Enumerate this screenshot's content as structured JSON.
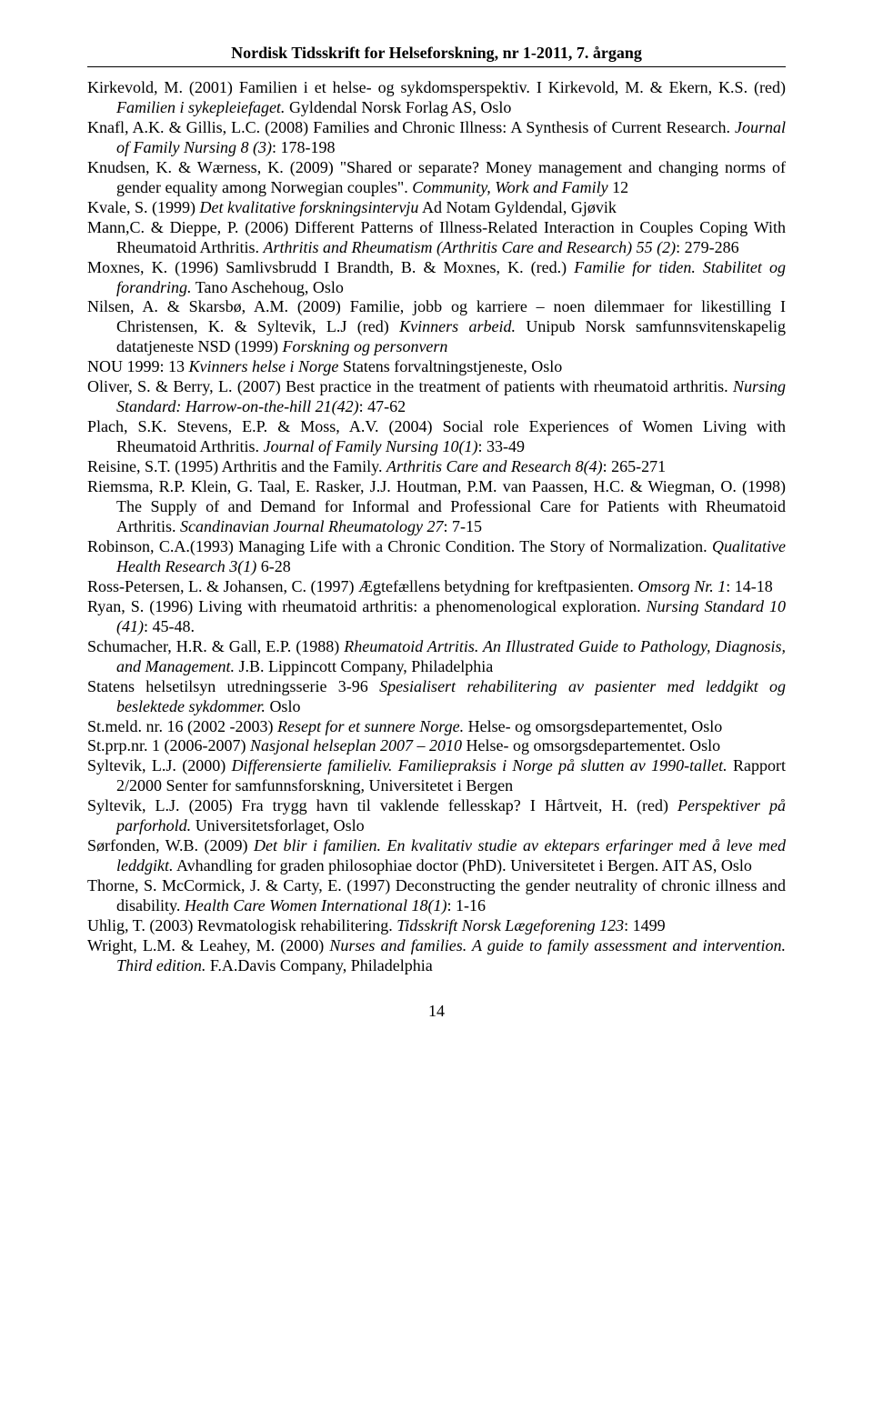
{
  "header": "Nordisk Tidsskrift for Helseforskning, nr 1-2011, 7. årgang",
  "page_number": "14",
  "refs": [
    [
      [
        "",
        "Kirkevold, M. (2001) Familien i et helse- og sykdomsperspektiv. I Kirkevold, M. & Ekern, K.S. (red) "
      ],
      [
        "i",
        "Familien i sykepleiefaget."
      ],
      [
        "",
        " Gyldendal Norsk Forlag AS, Oslo"
      ]
    ],
    [
      [
        "",
        "Knafl, A.K. & Gillis, L.C. (2008) Families and Chronic Illness: A Synthesis of Current Research. "
      ],
      [
        "i",
        "Journal of Family Nursing 8 (3)"
      ],
      [
        "",
        ": 178-198"
      ]
    ],
    [
      [
        "",
        "Knudsen, K. & Wærness, K. (2009) \"Shared or separate? Money management and changing norms of gender equality among Norwegian couples\". "
      ],
      [
        "i",
        "Community, Work and Family"
      ],
      [
        "",
        " 12"
      ]
    ],
    [
      [
        "",
        "Kvale, S. (1999) "
      ],
      [
        "i",
        "Det kvalitative forskningsintervju"
      ],
      [
        "",
        " Ad Notam Gyldendal, Gjøvik"
      ]
    ],
    [
      [
        "",
        "Mann,C. & Dieppe, P. (2006) Different Patterns of Illness-Related Interaction in Couples Coping With Rheumatoid Arthritis. "
      ],
      [
        "i",
        "Arthritis and Rheumatism (Arthritis Care and Research) 55 (2)"
      ],
      [
        "",
        ": 279-286"
      ]
    ],
    [
      [
        "",
        "Moxnes, K. (1996) Samlivsbrudd I Brandth, B. & Moxnes, K. (red.) "
      ],
      [
        "i",
        "Familie for tiden. Stabilitet og forandring."
      ],
      [
        "",
        " Tano Aschehoug, Oslo"
      ]
    ],
    [
      [
        "",
        "Nilsen, A. & Skarsbø, A.M. (2009) Familie, jobb og karriere – noen dilemmaer for likestilling I Christensen, K. & Syltevik, L.J (red) "
      ],
      [
        "i",
        "Kvinners arbeid."
      ],
      [
        "",
        " Unipub Norsk samfunnsvitenskapelig datatjeneste NSD (1999) "
      ],
      [
        "i",
        "Forskning og personvern"
      ]
    ],
    [
      [
        "",
        "NOU 1999: 13 "
      ],
      [
        "i",
        "Kvinners helse i Norge"
      ],
      [
        "",
        " Statens forvaltningstjeneste, Oslo"
      ]
    ],
    [
      [
        "",
        "Oliver, S. & Berry, L. (2007) Best practice in the treatment of patients with rheumatoid arthritis. "
      ],
      [
        "i",
        "Nursing Standard: Harrow-on-the-hill 21(42)"
      ],
      [
        "",
        ": 47-62"
      ]
    ],
    [
      [
        "",
        "Plach, S.K. Stevens, E.P. & Moss, A.V. (2004) Social role Experiences of Women Living with Rheumatoid Arthritis. "
      ],
      [
        "i",
        "Journal of Family Nursing 10(1)"
      ],
      [
        "",
        ":  33-49"
      ]
    ],
    [
      [
        "",
        "Reisine, S.T. (1995) Arthritis and the Family. "
      ],
      [
        "i",
        "Arthritis Care and Research 8(4)"
      ],
      [
        "",
        ": 265-271"
      ]
    ],
    [
      [
        "",
        "Riemsma, R.P. Klein, G. Taal, E. Rasker, J.J. Houtman, P.M. van Paassen, H.C. & Wiegman, O. (1998) The Supply of and Demand for Informal and Professional Care for Patients with Rheumatoid Arthritis. "
      ],
      [
        "i",
        "Scandinavian Journal Rheumatology 27"
      ],
      [
        "",
        ": 7-15"
      ]
    ],
    [
      [
        "",
        "Robinson, C.A.(1993) Managing Life with a Chronic Condition. The Story of Normalization. "
      ],
      [
        "i",
        "Qualitative Health Research 3(1)"
      ],
      [
        "",
        " 6-28"
      ]
    ],
    [
      [
        "",
        "Ross-Petersen, L. & Johansen, C. (1997) Ægtefællens betydning for kreftpasienten. "
      ],
      [
        "i",
        "Omsorg Nr. 1"
      ],
      [
        "",
        ": 14-18"
      ]
    ],
    [
      [
        "",
        "Ryan, S. (1996) Living with rheumatoid arthritis: a phenomenological exploration. "
      ],
      [
        "i",
        "Nursing Standard 10 (41)"
      ],
      [
        "",
        ": 45-48."
      ]
    ],
    [
      [
        "",
        "Schumacher, H.R. & Gall, E.P. (1988) "
      ],
      [
        "i",
        "Rheumatoid Artritis. An Illustrated Guide to Pathology, Diagnosis, and Management."
      ],
      [
        "",
        " J.B. Lippincott Company, Philadelphia"
      ]
    ],
    [
      [
        "",
        "   Statens helsetilsyn utredningsserie 3-96 "
      ],
      [
        "i",
        "Spesialisert rehabilitering av pasienter med leddgikt og beslektede sykdommer."
      ],
      [
        "",
        " Oslo"
      ]
    ],
    [
      [
        "",
        "St.meld. nr. 16 (2002 -2003) "
      ],
      [
        "i",
        "Resept for et sunnere Norge."
      ],
      [
        "",
        " Helse- og omsorgsdepartementet, Oslo"
      ]
    ],
    [
      [
        "",
        "St.prp.nr. 1 (2006-2007) "
      ],
      [
        "i",
        "Nasjonal helseplan 2007 – 2010"
      ],
      [
        "",
        " Helse- og omsorgsdepartementet. Oslo"
      ]
    ],
    [
      [
        "",
        "Syltevik, L.J. (2000) "
      ],
      [
        "i",
        "Differensierte familieliv. Familiepraksis i Norge på slutten av 1990-tallet."
      ],
      [
        "",
        " Rapport 2/2000 Senter for samfunnsforskning, Universitetet i Bergen"
      ]
    ],
    [
      [
        "",
        "Syltevik, L.J. (2005) Fra trygg havn til vaklende fellesskap? I Hårtveit, H. (red) "
      ],
      [
        "i",
        "Perspektiver på parforhold."
      ],
      [
        "",
        " Universitetsforlaget, Oslo"
      ]
    ],
    [
      [
        "",
        "Sørfonden, W.B. (2009) "
      ],
      [
        "i",
        "Det blir i familien. En kvalitativ studie av ektepars erfaringer med å leve med leddgikt."
      ],
      [
        "",
        " Avhandling for graden philosophiae doctor (PhD).  Universitetet i Bergen. AIT AS, Oslo"
      ]
    ],
    [
      [
        "",
        "Thorne, S. McCormick, J. & Carty, E. (1997) Deconstructing the gender neutrality of chronic illness and disability. "
      ],
      [
        "i",
        "Health Care Women International 18(1)"
      ],
      [
        "",
        ": 1-16"
      ]
    ],
    [
      [
        "",
        "Uhlig, T. (2003) Revmatologisk rehabilitering. "
      ],
      [
        "i",
        "Tidsskrift Norsk Lægeforening 123"
      ],
      [
        "",
        ": 1499"
      ]
    ],
    [
      [
        "",
        "Wright, L.M. & Leahey, M. (2000) "
      ],
      [
        "i",
        "Nurses and families. A guide to family assessment and intervention. Third edition."
      ],
      [
        "",
        " F.A.Davis Company, Philadelphia"
      ]
    ]
  ]
}
